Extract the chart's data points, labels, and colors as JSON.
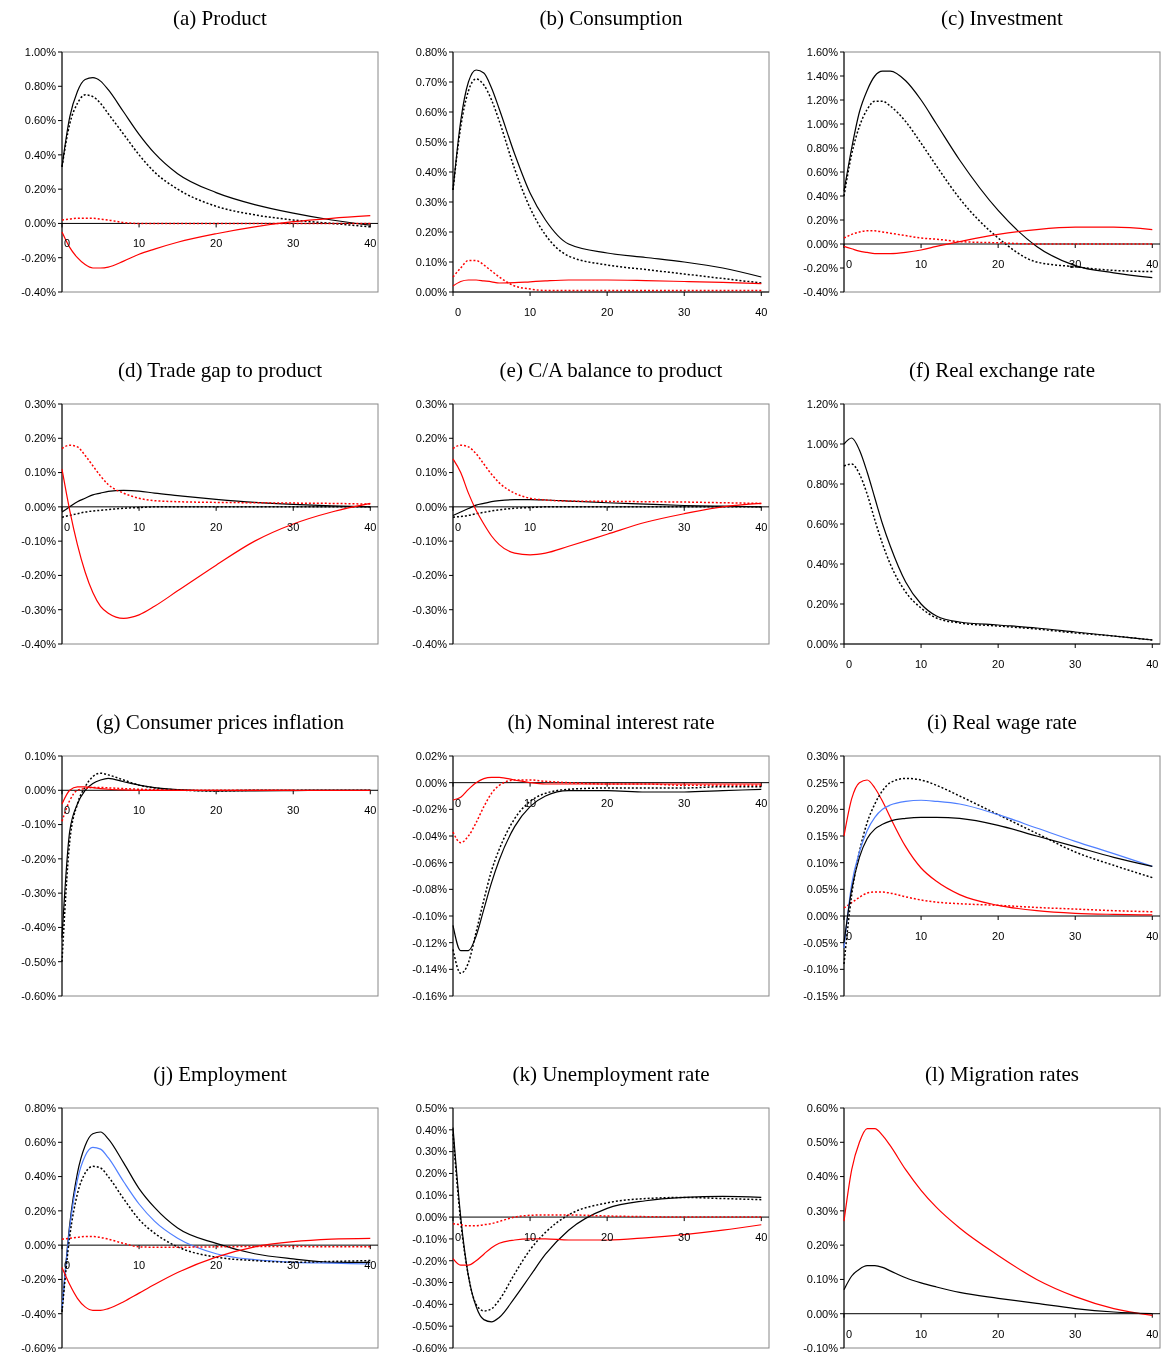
{
  "chart_data": [
    {
      "type": "line",
      "title": "(a) Product",
      "x": [
        0,
        1,
        2,
        3,
        4,
        5,
        6,
        8,
        10,
        12,
        15,
        20,
        25,
        30,
        35,
        40
      ],
      "xlim": [
        0,
        41
      ],
      "xticks": [
        0,
        10,
        20,
        30,
        40
      ],
      "ylim": [
        -0.4,
        1.0
      ],
      "yticks": [
        {
          "value": -0.4,
          "label": "-0.40%"
        },
        {
          "value": -0.2,
          "label": "-0.20%"
        },
        {
          "value": 0,
          "label": "0.00%"
        },
        {
          "value": 0.2,
          "label": "0.20%"
        },
        {
          "value": 0.4,
          "label": "0.40%"
        },
        {
          "value": 0.6,
          "label": "0.60%"
        },
        {
          "value": 0.8,
          "label": "0.80%"
        },
        {
          "value": 1.0,
          "label": "1.00%"
        }
      ],
      "series": [
        {
          "color": "#000000",
          "values": [
            0.33,
            0.62,
            0.77,
            0.84,
            0.85,
            0.83,
            0.78,
            0.65,
            0.52,
            0.41,
            0.29,
            0.18,
            0.11,
            0.06,
            0.02,
            -0.01
          ]
        },
        {
          "color": "#000000",
          "line_style": "dotted",
          "values": [
            0.33,
            0.58,
            0.7,
            0.75,
            0.74,
            0.7,
            0.64,
            0.52,
            0.4,
            0.3,
            0.2,
            0.1,
            0.05,
            0.02,
            0.0,
            -0.02
          ]
        },
        {
          "color": "#ff0000",
          "values": [
            -0.05,
            -0.14,
            -0.2,
            -0.24,
            -0.26,
            -0.26,
            -0.255,
            -0.22,
            -0.18,
            -0.15,
            -0.11,
            -0.06,
            -0.02,
            0.01,
            0.03,
            0.045
          ]
        },
        {
          "color": "#ff0000",
          "line_style": "dotted",
          "values": [
            0.02,
            0.025,
            0.03,
            0.03,
            0.03,
            0.025,
            0.02,
            0.005,
            0,
            0,
            0,
            0,
            0,
            0,
            0,
            0
          ]
        }
      ]
    },
    {
      "type": "line",
      "title": "(b) Consumption",
      "x": [
        0,
        1,
        2,
        3,
        4,
        5,
        6,
        8,
        10,
        12,
        15,
        20,
        25,
        30,
        35,
        40
      ],
      "xlim": [
        0,
        41
      ],
      "xticks": [
        0,
        10,
        20,
        30,
        40
      ],
      "ylim": [
        0,
        0.8
      ],
      "yticks": [
        {
          "value": 0,
          "label": "0.00%"
        },
        {
          "value": 0.1,
          "label": "0.10%"
        },
        {
          "value": 0.2,
          "label": "0.20%"
        },
        {
          "value": 0.3,
          "label": "0.30%"
        },
        {
          "value": 0.4,
          "label": "0.40%"
        },
        {
          "value": 0.5,
          "label": "0.50%"
        },
        {
          "value": 0.6,
          "label": "0.60%"
        },
        {
          "value": 0.7,
          "label": "0.70%"
        },
        {
          "value": 0.8,
          "label": "0.80%"
        }
      ],
      "series": [
        {
          "color": "#000000",
          "values": [
            0.34,
            0.57,
            0.7,
            0.74,
            0.73,
            0.68,
            0.61,
            0.46,
            0.33,
            0.24,
            0.16,
            0.13,
            0.115,
            0.1,
            0.08,
            0.05
          ]
        },
        {
          "color": "#000000",
          "line_style": "dotted",
          "values": [
            0.34,
            0.55,
            0.67,
            0.71,
            0.69,
            0.64,
            0.57,
            0.41,
            0.28,
            0.19,
            0.12,
            0.09,
            0.075,
            0.06,
            0.045,
            0.03
          ]
        },
        {
          "color": "#ff0000",
          "values": [
            0.02,
            0.035,
            0.04,
            0.04,
            0.037,
            0.034,
            0.03,
            0.031,
            0.034,
            0.037,
            0.04,
            0.04,
            0.038,
            0.035,
            0.032,
            0.028
          ]
        },
        {
          "color": "#ff0000",
          "line_style": "dotted",
          "values": [
            0.05,
            0.08,
            0.105,
            0.105,
            0.09,
            0.07,
            0.05,
            0.02,
            0.01,
            0.005,
            0.005,
            0.005,
            0.005,
            0.005,
            0.005,
            0.005
          ]
        }
      ]
    },
    {
      "type": "line",
      "title": "(c) Investment",
      "x": [
        0,
        1,
        2,
        3,
        4,
        5,
        6,
        8,
        10,
        12,
        15,
        20,
        25,
        30,
        35,
        40
      ],
      "xlim": [
        0,
        41
      ],
      "xticks": [
        0,
        10,
        20,
        30,
        40
      ],
      "ylim": [
        -0.4,
        1.6
      ],
      "yticks": [
        {
          "value": -0.4,
          "label": "-0.40%"
        },
        {
          "value": -0.2,
          "label": "-0.20%"
        },
        {
          "value": 0,
          "label": "0.00%"
        },
        {
          "value": 0.2,
          "label": "0.20%"
        },
        {
          "value": 0.4,
          "label": "0.40%"
        },
        {
          "value": 0.6,
          "label": "0.60%"
        },
        {
          "value": 0.8,
          "label": "0.80%"
        },
        {
          "value": 1.0,
          "label": "1.00%"
        },
        {
          "value": 1.2,
          "label": "1.20%"
        },
        {
          "value": 1.4,
          "label": "1.40%"
        },
        {
          "value": 1.6,
          "label": "1.60%"
        }
      ],
      "series": [
        {
          "color": "#000000",
          "values": [
            0.44,
            0.8,
            1.1,
            1.28,
            1.4,
            1.44,
            1.44,
            1.36,
            1.2,
            1.0,
            0.7,
            0.28,
            -0.02,
            -0.18,
            -0.24,
            -0.28
          ]
        },
        {
          "color": "#000000",
          "line_style": "dotted",
          "values": [
            0.4,
            0.75,
            0.98,
            1.12,
            1.19,
            1.19,
            1.15,
            1.02,
            0.84,
            0.65,
            0.38,
            0.05,
            -0.15,
            -0.19,
            -0.22,
            -0.23
          ]
        },
        {
          "color": "#ff0000",
          "values": [
            -0.02,
            -0.04,
            -0.06,
            -0.07,
            -0.08,
            -0.08,
            -0.08,
            -0.07,
            -0.05,
            -0.02,
            0.02,
            0.08,
            0.12,
            0.14,
            0.14,
            0.12
          ]
        },
        {
          "color": "#ff0000",
          "line_style": "dotted",
          "values": [
            0.05,
            0.08,
            0.1,
            0.11,
            0.11,
            0.1,
            0.09,
            0.07,
            0.05,
            0.04,
            0.02,
            0.01,
            0,
            0,
            0,
            0
          ]
        }
      ]
    },
    {
      "type": "line",
      "title": "(d) Trade gap to product",
      "x": [
        0,
        1,
        2,
        3,
        4,
        5,
        6,
        8,
        10,
        12,
        15,
        20,
        25,
        30,
        35,
        40
      ],
      "xlim": [
        0,
        41
      ],
      "xticks": [
        0,
        10,
        20,
        30,
        40
      ],
      "ylim": [
        -0.4,
        0.3
      ],
      "yticks": [
        {
          "value": -0.4,
          "label": "-0.40%"
        },
        {
          "value": -0.3,
          "label": "-0.30%"
        },
        {
          "value": -0.2,
          "label": "-0.20%"
        },
        {
          "value": -0.1,
          "label": "-0.10%"
        },
        {
          "value": 0,
          "label": "0.00%"
        },
        {
          "value": 0.1,
          "label": "0.10%"
        },
        {
          "value": 0.2,
          "label": "0.20%"
        },
        {
          "value": 0.3,
          "label": "0.30%"
        }
      ],
      "series": [
        {
          "color": "#000000",
          "values": [
            -0.015,
            0.0,
            0.015,
            0.025,
            0.035,
            0.04,
            0.045,
            0.048,
            0.046,
            0.04,
            0.033,
            0.022,
            0.013,
            0.007,
            0.003,
            0.0
          ]
        },
        {
          "color": "#000000",
          "line_style": "dotted",
          "values": [
            -0.03,
            -0.025,
            -0.02,
            -0.015,
            -0.012,
            -0.01,
            -0.008,
            -0.004,
            -0.002,
            0,
            0,
            0,
            0,
            0,
            0,
            0
          ]
        },
        {
          "color": "#ff0000",
          "values": [
            0.11,
            -0.01,
            -0.11,
            -0.19,
            -0.25,
            -0.29,
            -0.31,
            -0.325,
            -0.315,
            -0.29,
            -0.245,
            -0.17,
            -0.1,
            -0.05,
            -0.015,
            0.01
          ]
        },
        {
          "color": "#ff0000",
          "line_style": "dotted",
          "values": [
            0.17,
            0.18,
            0.175,
            0.15,
            0.12,
            0.09,
            0.065,
            0.04,
            0.025,
            0.018,
            0.015,
            0.013,
            0.012,
            0.011,
            0.01,
            0.008
          ]
        }
      ]
    },
    {
      "type": "line",
      "title": "(e) C/A balance to product",
      "x": [
        0,
        1,
        2,
        3,
        4,
        5,
        6,
        8,
        10,
        12,
        15,
        20,
        25,
        30,
        35,
        40
      ],
      "xlim": [
        0,
        41
      ],
      "xticks": [
        0,
        10,
        20,
        30,
        40
      ],
      "ylim": [
        -0.4,
        0.3
      ],
      "yticks": [
        {
          "value": -0.4,
          "label": "-0.40%"
        },
        {
          "value": -0.3,
          "label": "-0.30%"
        },
        {
          "value": -0.2,
          "label": "-0.20%"
        },
        {
          "value": -0.1,
          "label": "-0.10%"
        },
        {
          "value": 0,
          "label": "0.00%"
        },
        {
          "value": 0.1,
          "label": "0.10%"
        },
        {
          "value": 0.2,
          "label": "0.20%"
        },
        {
          "value": 0.3,
          "label": "0.30%"
        }
      ],
      "series": [
        {
          "color": "#000000",
          "values": [
            -0.025,
            -0.015,
            -0.005,
            0.005,
            0.01,
            0.015,
            0.018,
            0.021,
            0.021,
            0.02,
            0.017,
            0.012,
            0.008,
            0.004,
            0.002,
            0.0
          ]
        },
        {
          "color": "#000000",
          "line_style": "dotted",
          "values": [
            -0.03,
            -0.028,
            -0.025,
            -0.02,
            -0.016,
            -0.012,
            -0.009,
            -0.004,
            -0.002,
            0,
            0,
            0,
            0,
            0,
            0,
            0
          ]
        },
        {
          "color": "#ff0000",
          "values": [
            0.14,
            0.1,
            0.04,
            -0.01,
            -0.05,
            -0.085,
            -0.11,
            -0.135,
            -0.14,
            -0.135,
            -0.115,
            -0.08,
            -0.045,
            -0.02,
            0.0,
            0.01
          ]
        },
        {
          "color": "#ff0000",
          "line_style": "dotted",
          "values": [
            0.17,
            0.18,
            0.175,
            0.155,
            0.125,
            0.095,
            0.07,
            0.04,
            0.025,
            0.02,
            0.017,
            0.016,
            0.015,
            0.014,
            0.012,
            0.01
          ]
        }
      ]
    },
    {
      "type": "line",
      "title": "(f) Real exchange rate",
      "x": [
        0,
        1,
        2,
        3,
        4,
        5,
        6,
        8,
        10,
        12,
        15,
        20,
        25,
        30,
        35,
        40
      ],
      "xlim": [
        0,
        41
      ],
      "xticks": [
        0,
        10,
        20,
        30,
        40
      ],
      "ylim": [
        0,
        1.2
      ],
      "yticks": [
        {
          "value": 0,
          "label": "0.00%"
        },
        {
          "value": 0.2,
          "label": "0.20%"
        },
        {
          "value": 0.4,
          "label": "0.40%"
        },
        {
          "value": 0.6,
          "label": "0.60%"
        },
        {
          "value": 0.8,
          "label": "0.80%"
        },
        {
          "value": 1.0,
          "label": "1.00%"
        },
        {
          "value": 1.2,
          "label": "1.20%"
        }
      ],
      "series": [
        {
          "color": "#000000",
          "values": [
            1.0,
            1.03,
            0.97,
            0.86,
            0.73,
            0.6,
            0.49,
            0.31,
            0.2,
            0.14,
            0.11,
            0.095,
            0.08,
            0.06,
            0.04,
            0.02
          ]
        },
        {
          "color": "#000000",
          "line_style": "dotted",
          "values": [
            0.89,
            0.9,
            0.85,
            0.75,
            0.62,
            0.5,
            0.4,
            0.26,
            0.18,
            0.13,
            0.105,
            0.09,
            0.075,
            0.055,
            0.04,
            0.02
          ]
        }
      ]
    },
    {
      "type": "line",
      "title": "(g) Consumer prices inflation",
      "x": [
        0,
        1,
        2,
        3,
        4,
        5,
        6,
        8,
        10,
        12,
        15,
        20,
        25,
        30,
        35,
        40
      ],
      "xlim": [
        0,
        41
      ],
      "xticks": [
        0,
        10,
        20,
        30,
        40
      ],
      "ylim": [
        -0.6,
        0.1
      ],
      "yticks": [
        {
          "value": -0.6,
          "label": "-0.60%"
        },
        {
          "value": -0.5,
          "label": "-0.50%"
        },
        {
          "value": -0.4,
          "label": "-0.40%"
        },
        {
          "value": -0.3,
          "label": "-0.30%"
        },
        {
          "value": -0.2,
          "label": "-0.20%"
        },
        {
          "value": -0.1,
          "label": "-0.10%"
        },
        {
          "value": 0,
          "label": "0.00%"
        },
        {
          "value": 0.1,
          "label": "0.10%"
        }
      ],
      "series": [
        {
          "color": "#000000",
          "values": [
            -0.43,
            -0.12,
            -0.04,
            0.0,
            0.02,
            0.03,
            0.035,
            0.025,
            0.015,
            0.008,
            0.002,
            -0.002,
            -0.002,
            -0.001,
            0,
            0
          ]
        },
        {
          "color": "#000000",
          "line_style": "dotted",
          "values": [
            -0.5,
            -0.15,
            -0.04,
            0.01,
            0.04,
            0.05,
            0.045,
            0.03,
            0.015,
            0.007,
            0.001,
            -0.002,
            0,
            0,
            0,
            0
          ]
        },
        {
          "color": "#ff0000",
          "values": [
            -0.04,
            0.0,
            0.01,
            0.01,
            0.008,
            0.005,
            0.003,
            0.001,
            0,
            0,
            0,
            0,
            0,
            0,
            0,
            0
          ]
        },
        {
          "color": "#ff0000",
          "line_style": "dotted",
          "values": [
            -0.09,
            -0.03,
            0.0,
            0.005,
            0.008,
            0.008,
            0.007,
            0.005,
            0.003,
            0.002,
            0,
            0,
            0,
            0,
            null,
            null
          ]
        }
      ]
    },
    {
      "type": "line",
      "title": "(h) Nominal interest rate",
      "x": [
        0,
        1,
        2,
        3,
        4,
        5,
        6,
        8,
        10,
        12,
        15,
        20,
        25,
        30,
        35,
        40
      ],
      "xlim": [
        0,
        41
      ],
      "xticks": [
        0,
        10,
        20,
        30,
        40
      ],
      "ylim": [
        -0.16,
        0.02
      ],
      "yticks": [
        {
          "value": -0.16,
          "label": "-0.16%"
        },
        {
          "value": -0.14,
          "label": "-0.14%"
        },
        {
          "value": -0.12,
          "label": "-0.12%"
        },
        {
          "value": -0.1,
          "label": "-0.10%"
        },
        {
          "value": -0.08,
          "label": "-0.08%"
        },
        {
          "value": -0.06,
          "label": "-0.06%"
        },
        {
          "value": -0.04,
          "label": "-0.04%"
        },
        {
          "value": -0.02,
          "label": "-0.02%"
        },
        {
          "value": 0,
          "label": "0.00%"
        },
        {
          "value": 0.02,
          "label": "0.02%"
        }
      ],
      "series": [
        {
          "color": "#000000",
          "values": [
            -0.107,
            -0.126,
            -0.126,
            -0.115,
            -0.095,
            -0.075,
            -0.058,
            -0.033,
            -0.018,
            -0.01,
            -0.006,
            -0.006,
            -0.007,
            -0.007,
            -0.006,
            -0.005
          ]
        },
        {
          "color": "#000000",
          "line_style": "dotted",
          "values": [
            -0.125,
            -0.143,
            -0.135,
            -0.112,
            -0.088,
            -0.066,
            -0.05,
            -0.027,
            -0.014,
            -0.008,
            -0.005,
            -0.004,
            -0.004,
            -0.004,
            -0.003,
            -0.003
          ]
        },
        {
          "color": "#ff0000",
          "values": [
            -0.013,
            -0.011,
            -0.005,
            0.0,
            0.003,
            0.004,
            0.004,
            0.002,
            0.0,
            -0.001,
            -0.001,
            -0.001,
            -0.001,
            -0.001,
            -0.001,
            -0.001
          ]
        },
        {
          "color": "#ff0000",
          "line_style": "dotted",
          "values": [
            -0.037,
            -0.045,
            -0.04,
            -0.03,
            -0.018,
            -0.008,
            -0.002,
            0.002,
            0.002,
            0.001,
            0.0,
            -0.001,
            -0.001,
            -0.002,
            -0.002,
            -0.002
          ]
        }
      ]
    },
    {
      "type": "line",
      "title": "(i) Real wage rate",
      "x": [
        0,
        1,
        2,
        3,
        4,
        5,
        6,
        8,
        10,
        12,
        15,
        20,
        25,
        30,
        35,
        40
      ],
      "xlim": [
        0,
        41
      ],
      "xticks": [
        0,
        10,
        20,
        30,
        40
      ],
      "ylim": [
        -0.15,
        0.3
      ],
      "yticks": [
        {
          "value": -0.15,
          "label": "-0.15%"
        },
        {
          "value": -0.1,
          "label": "-0.10%"
        },
        {
          "value": -0.05,
          "label": "-0.05%"
        },
        {
          "value": 0,
          "label": "0.00%"
        },
        {
          "value": 0.05,
          "label": "0.05%"
        },
        {
          "value": 0.1,
          "label": "0.10%"
        },
        {
          "value": 0.15,
          "label": "0.15%"
        },
        {
          "value": 0.2,
          "label": "0.20%"
        },
        {
          "value": 0.25,
          "label": "0.25%"
        },
        {
          "value": 0.3,
          "label": "0.30%"
        }
      ],
      "series": [
        {
          "color": "#ff0000",
          "values": [
            0.15,
            0.22,
            0.25,
            0.255,
            0.24,
            0.215,
            0.185,
            0.13,
            0.09,
            0.065,
            0.04,
            0.02,
            0.01,
            0.005,
            0.003,
            0.002
          ]
        },
        {
          "color": "#ff0000",
          "line_style": "dotted",
          "values": [
            0.015,
            0.025,
            0.035,
            0.043,
            0.045,
            0.045,
            0.043,
            0.036,
            0.03,
            0.026,
            0.023,
            0.02,
            0.016,
            0.013,
            0.01,
            0.008
          ]
        },
        {
          "color": "#000000",
          "line_style": "dotted",
          "values": [
            -0.09,
            0.04,
            0.12,
            0.175,
            0.21,
            0.235,
            0.25,
            0.258,
            0.255,
            0.245,
            0.225,
            0.19,
            0.155,
            0.12,
            0.095,
            0.072
          ]
        },
        {
          "color": "#4f7fff",
          "values": [
            -0.06,
            0.06,
            0.12,
            0.16,
            0.185,
            0.2,
            0.208,
            0.215,
            0.217,
            0.215,
            0.21,
            0.19,
            0.165,
            0.14,
            0.117,
            0.093
          ]
        },
        {
          "color": "#000000",
          "values": [
            -0.05,
            0.05,
            0.11,
            0.145,
            0.163,
            0.172,
            0.178,
            0.183,
            0.185,
            0.185,
            0.183,
            0.17,
            0.15,
            0.13,
            0.11,
            0.093
          ]
        }
      ]
    },
    {
      "type": "line",
      "title": "(j) Employment",
      "x": [
        0,
        1,
        2,
        3,
        4,
        5,
        6,
        8,
        10,
        12,
        15,
        20,
        25,
        30,
        35,
        40
      ],
      "xlim": [
        0,
        41
      ],
      "xticks": [
        0,
        10,
        20,
        30,
        40
      ],
      "ylim": [
        -0.6,
        0.8
      ],
      "yticks": [
        {
          "value": -0.6,
          "label": "-0.60%"
        },
        {
          "value": -0.4,
          "label": "-0.40%"
        },
        {
          "value": -0.2,
          "label": "-0.20%"
        },
        {
          "value": 0,
          "label": "0.00%"
        },
        {
          "value": 0.2,
          "label": "0.20%"
        },
        {
          "value": 0.4,
          "label": "0.40%"
        },
        {
          "value": 0.6,
          "label": "0.60%"
        },
        {
          "value": 0.8,
          "label": "0.80%"
        }
      ],
      "series": [
        {
          "color": "#000000",
          "values": [
            -0.38,
            0.12,
            0.42,
            0.58,
            0.65,
            0.66,
            0.62,
            0.48,
            0.33,
            0.22,
            0.1,
            0.01,
            -0.05,
            -0.08,
            -0.1,
            -0.1
          ]
        },
        {
          "color": "#4f7fff",
          "values": [
            -0.37,
            0.1,
            0.38,
            0.52,
            0.57,
            0.56,
            0.51,
            0.37,
            0.24,
            0.14,
            0.04,
            -0.05,
            -0.085,
            -0.1,
            -0.105,
            -0.11
          ]
        },
        {
          "color": "#000000",
          "line_style": "dotted",
          "values": [
            -0.39,
            0.05,
            0.3,
            0.42,
            0.46,
            0.45,
            0.4,
            0.27,
            0.15,
            0.07,
            -0.01,
            -0.07,
            -0.09,
            -0.1,
            -0.095,
            -0.09
          ]
        },
        {
          "color": "#ff0000",
          "values": [
            -0.13,
            -0.23,
            -0.31,
            -0.36,
            -0.38,
            -0.38,
            -0.37,
            -0.33,
            -0.28,
            -0.23,
            -0.16,
            -0.07,
            -0.01,
            0.02,
            0.035,
            0.04
          ]
        },
        {
          "color": "#ff0000",
          "line_style": "dotted",
          "values": [
            0.035,
            0.04,
            0.045,
            0.05,
            0.05,
            0.045,
            0.035,
            0.01,
            -0.01,
            -0.012,
            -0.012,
            -0.01,
            -0.008,
            -0.008,
            -0.01,
            -0.01
          ]
        }
      ]
    },
    {
      "type": "line",
      "title": "(k) Unemployment rate",
      "x": [
        0,
        1,
        2,
        3,
        4,
        5,
        6,
        8,
        10,
        12,
        15,
        20,
        25,
        30,
        35,
        40
      ],
      "xlim": [
        0,
        41
      ],
      "xticks": [
        0,
        10,
        20,
        30,
        40
      ],
      "ylim": [
        -0.6,
        0.5
      ],
      "yticks": [
        {
          "value": -0.6,
          "label": "-0.60%"
        },
        {
          "value": -0.5,
          "label": "-0.50%"
        },
        {
          "value": -0.4,
          "label": "-0.40%"
        },
        {
          "value": -0.3,
          "label": "-0.30%"
        },
        {
          "value": -0.2,
          "label": "-0.20%"
        },
        {
          "value": -0.1,
          "label": "-0.10%"
        },
        {
          "value": 0,
          "label": "0.00%"
        },
        {
          "value": 0.1,
          "label": "0.10%"
        },
        {
          "value": 0.2,
          "label": "0.20%"
        },
        {
          "value": 0.3,
          "label": "0.30%"
        },
        {
          "value": 0.4,
          "label": "0.40%"
        },
        {
          "value": 0.5,
          "label": "0.50%"
        }
      ],
      "series": [
        {
          "color": "#000000",
          "values": [
            0.41,
            0.0,
            -0.27,
            -0.41,
            -0.47,
            -0.48,
            -0.46,
            -0.37,
            -0.27,
            -0.17,
            -0.06,
            0.04,
            0.075,
            0.09,
            0.095,
            0.09
          ]
        },
        {
          "color": "#000000",
          "line_style": "dotted",
          "values": [
            0.38,
            -0.02,
            -0.27,
            -0.4,
            -0.43,
            -0.42,
            -0.38,
            -0.26,
            -0.15,
            -0.07,
            0.01,
            0.065,
            0.085,
            0.09,
            0.085,
            0.08
          ]
        },
        {
          "color": "#ff0000",
          "values": [
            -0.19,
            -0.22,
            -0.22,
            -0.2,
            -0.17,
            -0.14,
            -0.12,
            -0.105,
            -0.1,
            -0.1,
            -0.105,
            -0.105,
            -0.095,
            -0.08,
            -0.06,
            -0.035
          ]
        },
        {
          "color": "#ff0000",
          "line_style": "dotted",
          "values": [
            -0.03,
            -0.035,
            -0.04,
            -0.04,
            -0.035,
            -0.03,
            -0.02,
            0.0,
            0.008,
            0.01,
            0.01,
            0.005,
            0.002,
            0,
            0,
            0
          ]
        }
      ]
    },
    {
      "type": "line",
      "title": "(l) Migration rates",
      "x": [
        0,
        1,
        2,
        3,
        4,
        5,
        6,
        8,
        10,
        12,
        15,
        20,
        25,
        30,
        35,
        40
      ],
      "xlim": [
        0,
        41
      ],
      "xticks": [
        0,
        10,
        20,
        30,
        40
      ],
      "ylim": [
        -0.1,
        0.6
      ],
      "yticks": [
        {
          "value": -0.1,
          "label": "-0.10%"
        },
        {
          "value": 0,
          "label": "0.00%"
        },
        {
          "value": 0.1,
          "label": "0.10%"
        },
        {
          "value": 0.2,
          "label": "0.20%"
        },
        {
          "value": 0.3,
          "label": "0.30%"
        },
        {
          "value": 0.4,
          "label": "0.40%"
        },
        {
          "value": 0.5,
          "label": "0.50%"
        },
        {
          "value": 0.6,
          "label": "0.60%"
        }
      ],
      "series": [
        {
          "color": "#ff0000",
          "values": [
            0.27,
            0.42,
            0.5,
            0.54,
            0.54,
            0.52,
            0.49,
            0.42,
            0.36,
            0.31,
            0.25,
            0.17,
            0.1,
            0.05,
            0.015,
            -0.005
          ]
        },
        {
          "color": "#000000",
          "values": [
            0.07,
            0.11,
            0.13,
            0.14,
            0.14,
            0.135,
            0.125,
            0.105,
            0.09,
            0.078,
            0.062,
            0.045,
            0.03,
            0.015,
            0.005,
            0.0
          ]
        }
      ]
    }
  ]
}
